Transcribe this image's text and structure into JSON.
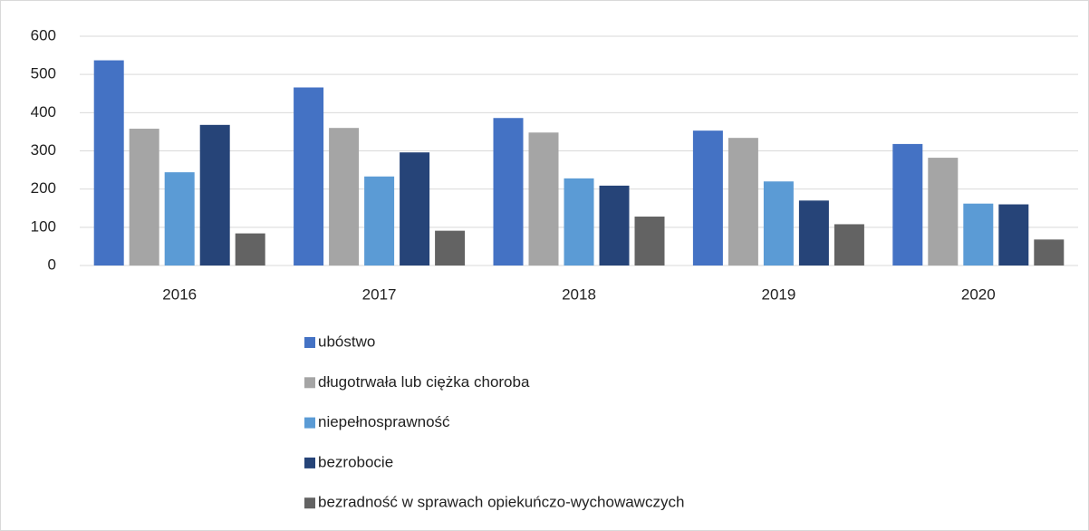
{
  "chart_data": {
    "type": "bar",
    "categories": [
      "2016",
      "2017",
      "2018",
      "2019",
      "2020"
    ],
    "series": [
      {
        "name": "ubóstwo",
        "color": "#4472c4",
        "values": [
          537,
          466,
          386,
          353,
          318
        ]
      },
      {
        "name": "długotrwała lub ciężka choroba",
        "color": "#a5a5a5",
        "values": [
          358,
          360,
          348,
          334,
          282
        ]
      },
      {
        "name": "niepełnosprawność",
        "color": "#5b9bd5",
        "values": [
          244,
          233,
          228,
          220,
          162
        ]
      },
      {
        "name": "bezrobocie",
        "color": "#264478",
        "values": [
          368,
          296,
          209,
          170,
          160
        ]
      },
      {
        "name": "bezradność w sprawach opiekuńczo-wychowawczych",
        "color": "#636363",
        "values": [
          84,
          91,
          128,
          108,
          68
        ]
      }
    ],
    "ylim": [
      0,
      600
    ],
    "yticks": [
      0,
      100,
      200,
      300,
      400,
      500,
      600
    ],
    "grid": true,
    "legend": "bottom"
  }
}
